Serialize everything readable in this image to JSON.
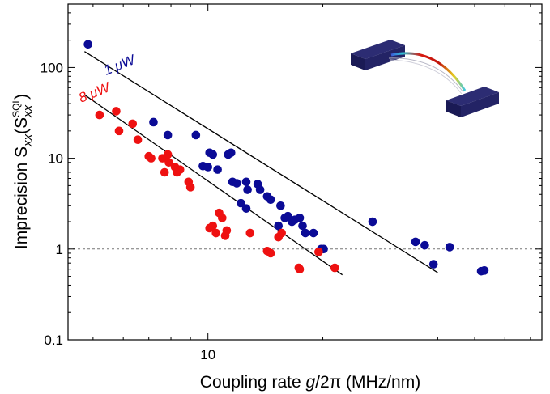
{
  "chart_data": {
    "type": "scatter",
    "x_scale": "log",
    "y_scale": "log",
    "xlim": [
      4.3,
      75
    ],
    "ylim": [
      0.1,
      500
    ],
    "xlabel": "Coupling rate g/2π (MHz/nm)",
    "xlabel_parts": {
      "pre": "Coupling rate ",
      "italic": "g",
      "post": "/2π (MHz/nm)"
    },
    "ylabel": "Imprecision Sxx(SxxSQL)",
    "ylabel_parts": {
      "main": "Imprecision S",
      "sub1": "xx",
      "paren_open": "(S",
      "sup": "SQL",
      "sub2": "xx",
      "paren_close": ")"
    },
    "x_ticks": [
      {
        "value": 10,
        "label": "10"
      }
    ],
    "y_ticks": [
      {
        "value": 0.1,
        "label": "0.1"
      },
      {
        "value": 1,
        "label": "1"
      },
      {
        "value": 10,
        "label": "10"
      },
      {
        "value": 100,
        "label": "100"
      }
    ],
    "reference_line": {
      "y": 1,
      "style": "dashed"
    },
    "series": [
      {
        "name": "1 μW",
        "label": "1 μW",
        "color": "#0b0b96",
        "fit": [
          [
            4.75,
            150
          ],
          [
            40,
            0.55
          ]
        ],
        "points": [
          [
            4.85,
            180
          ],
          [
            7.2,
            25
          ],
          [
            7.85,
            18
          ],
          [
            9.3,
            18
          ],
          [
            9.7,
            8.2
          ],
          [
            10.0,
            8.0
          ],
          [
            10.1,
            11.5
          ],
          [
            10.3,
            11.0
          ],
          [
            10.6,
            7.5
          ],
          [
            11.3,
            11.0
          ],
          [
            11.5,
            11.5
          ],
          [
            11.6,
            5.5
          ],
          [
            11.9,
            5.3
          ],
          [
            12.2,
            3.2
          ],
          [
            12.6,
            2.8
          ],
          [
            12.6,
            5.5
          ],
          [
            12.7,
            4.5
          ],
          [
            13.5,
            5.2
          ],
          [
            13.7,
            4.5
          ],
          [
            14.3,
            3.8
          ],
          [
            14.6,
            3.5
          ],
          [
            15.5,
            3.0
          ],
          [
            15.3,
            1.8
          ],
          [
            15.9,
            2.2
          ],
          [
            16.2,
            2.3
          ],
          [
            16.6,
            2.0
          ],
          [
            16.9,
            2.1
          ],
          [
            17.4,
            2.2
          ],
          [
            17.7,
            1.8
          ],
          [
            18.0,
            1.5
          ],
          [
            18.9,
            1.5
          ],
          [
            19.8,
            1.0
          ],
          [
            20.1,
            1.0
          ],
          [
            27,
            2.0
          ],
          [
            35,
            1.2
          ],
          [
            37,
            1.1
          ],
          [
            39,
            0.68
          ],
          [
            43,
            1.05
          ],
          [
            52,
            0.57
          ],
          [
            53,
            0.58
          ]
        ]
      },
      {
        "name": "8 μW",
        "label": "8 μW",
        "color": "#ee1111",
        "fit": [
          [
            4.75,
            50
          ],
          [
            22.5,
            0.52
          ]
        ],
        "points": [
          [
            5.2,
            30
          ],
          [
            5.75,
            33
          ],
          [
            5.85,
            20
          ],
          [
            6.35,
            24
          ],
          [
            6.55,
            16
          ],
          [
            7.0,
            10.5
          ],
          [
            7.1,
            10.0
          ],
          [
            7.6,
            10.0
          ],
          [
            7.7,
            7.0
          ],
          [
            7.85,
            11.0
          ],
          [
            7.9,
            9.0
          ],
          [
            8.2,
            8.0
          ],
          [
            8.3,
            7.0
          ],
          [
            8.45,
            7.5
          ],
          [
            8.9,
            5.5
          ],
          [
            9.0,
            4.8
          ],
          [
            10.1,
            1.7
          ],
          [
            10.3,
            1.8
          ],
          [
            10.5,
            1.5
          ],
          [
            10.7,
            2.5
          ],
          [
            10.9,
            2.2
          ],
          [
            11.1,
            1.4
          ],
          [
            11.2,
            1.6
          ],
          [
            12.9,
            1.5
          ],
          [
            14.3,
            0.95
          ],
          [
            14.6,
            0.9
          ],
          [
            15.3,
            1.35
          ],
          [
            15.6,
            1.5
          ],
          [
            17.3,
            0.62
          ],
          [
            17.4,
            0.6
          ],
          [
            19.5,
            0.93
          ],
          [
            21.5,
            0.62
          ]
        ]
      }
    ],
    "inset": {
      "kind": "rendering of doubly-clamped beam resonator between two pads"
    }
  }
}
